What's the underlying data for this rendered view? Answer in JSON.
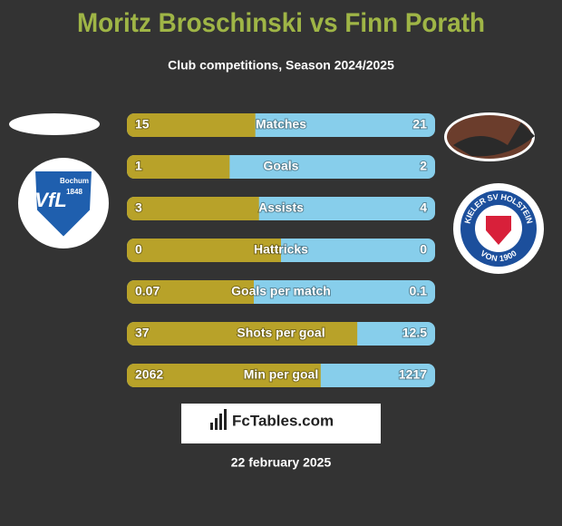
{
  "header": {
    "title": "Moritz Broschinski vs Finn Porath",
    "subtitle": "Club competitions, Season 2024/2025"
  },
  "left_badge": {
    "short": "VfL",
    "city": "Bochum",
    "year": "1848"
  },
  "right_badge": {
    "top": "KIELER SV HOLSTEIN",
    "bottom": "VON 1900"
  },
  "left_color": "#b8a229",
  "right_color": "#87ceeb",
  "rows": [
    {
      "label": "Matches",
      "left": 15,
      "right": 21
    },
    {
      "label": "Goals",
      "left": 1,
      "right": 2
    },
    {
      "label": "Assists",
      "left": 3,
      "right": 4
    },
    {
      "label": "Hattricks",
      "left": 0,
      "right": 0
    },
    {
      "label": "Goals per match",
      "left": 0.07,
      "right": 0.1
    },
    {
      "label": "Shots per goal",
      "left": 37,
      "right": 12.5
    },
    {
      "label": "Min per goal",
      "left": 2062,
      "right": 1217
    }
  ],
  "brand": "FcTables.com",
  "date": "22 february 2025"
}
